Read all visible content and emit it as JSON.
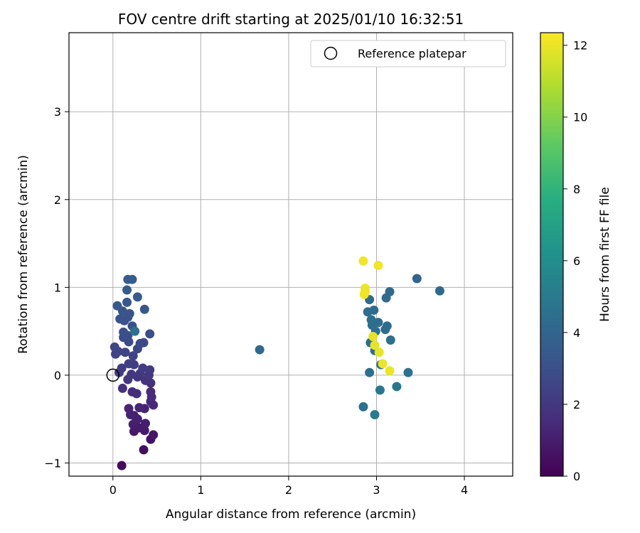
{
  "chart_data": {
    "type": "scatter",
    "title": "FOV centre drift starting at 2025/01/10 16:32:51",
    "xlabel": "Angular distance from reference (arcmin)",
    "ylabel": "Rotation from reference (arcmin)",
    "xlim": [
      -0.5,
      4.55
    ],
    "ylim": [
      -1.15,
      3.9
    ],
    "xticks": [
      0,
      1,
      2,
      3,
      4
    ],
    "yticks": [
      -1,
      0,
      1,
      2,
      3
    ],
    "grid": true,
    "legend": {
      "position": "top-right",
      "entries": [
        "Reference platepar"
      ]
    },
    "reference_point": {
      "x": 0,
      "y": 0
    },
    "colorbar": {
      "label": "Hours from first FF file",
      "range": [
        0,
        12.35
      ],
      "ticks": [
        0,
        2,
        4,
        6,
        8,
        10,
        12
      ],
      "colormap": "viridis"
    },
    "points": [
      {
        "x": 0.1,
        "y": -1.03,
        "h": 0.3
      },
      {
        "x": 0.35,
        "y": -0.85,
        "h": 0.5
      },
      {
        "x": 0.43,
        "y": -0.73,
        "h": 0.6
      },
      {
        "x": 0.46,
        "y": -0.68,
        "h": 0.7
      },
      {
        "x": 0.24,
        "y": -0.64,
        "h": 0.8
      },
      {
        "x": 0.36,
        "y": -0.63,
        "h": 0.9
      },
      {
        "x": 0.3,
        "y": -0.6,
        "h": 0.9
      },
      {
        "x": 0.23,
        "y": -0.56,
        "h": 1.0
      },
      {
        "x": 0.37,
        "y": -0.55,
        "h": 1.0
      },
      {
        "x": 0.28,
        "y": -0.5,
        "h": 1.1
      },
      {
        "x": 0.24,
        "y": -0.46,
        "h": 1.1
      },
      {
        "x": 0.2,
        "y": -0.45,
        "h": 1.2
      },
      {
        "x": 0.36,
        "y": -0.38,
        "h": 1.2
      },
      {
        "x": 0.3,
        "y": -0.37,
        "h": 1.3
      },
      {
        "x": 0.18,
        "y": -0.38,
        "h": 1.3
      },
      {
        "x": 0.46,
        "y": -0.34,
        "h": 1.4
      },
      {
        "x": 0.43,
        "y": -0.3,
        "h": 1.4
      },
      {
        "x": 0.44,
        "y": -0.25,
        "h": 1.5
      },
      {
        "x": 0.43,
        "y": -0.19,
        "h": 1.5
      },
      {
        "x": 0.27,
        "y": -0.21,
        "h": 1.6
      },
      {
        "x": 0.22,
        "y": -0.19,
        "h": 1.6
      },
      {
        "x": 0.11,
        "y": -0.15,
        "h": 1.7
      },
      {
        "x": 0.43,
        "y": -0.09,
        "h": 1.7
      },
      {
        "x": 0.37,
        "y": -0.06,
        "h": 1.8
      },
      {
        "x": 0.28,
        "y": -0.02,
        "h": 1.8
      },
      {
        "x": 0.17,
        "y": -0.05,
        "h": 1.9
      },
      {
        "x": 0.41,
        "y": 0.0,
        "h": 1.9
      },
      {
        "x": 0.31,
        "y": 0.02,
        "h": 2.0
      },
      {
        "x": 0.21,
        "y": 0.01,
        "h": 2.0
      },
      {
        "x": 0.07,
        "y": 0.03,
        "h": 2.1
      },
      {
        "x": 0.42,
        "y": 0.06,
        "h": 2.1
      },
      {
        "x": 0.34,
        "y": 0.08,
        "h": 2.2
      },
      {
        "x": 0.1,
        "y": 0.08,
        "h": 2.2
      },
      {
        "x": 0.24,
        "y": 0.12,
        "h": 2.3
      },
      {
        "x": 0.18,
        "y": 0.13,
        "h": 2.3
      },
      {
        "x": 0.23,
        "y": 0.22,
        "h": 2.4
      },
      {
        "x": 0.03,
        "y": 0.24,
        "h": 2.4
      },
      {
        "x": 0.06,
        "y": 0.27,
        "h": 2.5
      },
      {
        "x": 0.14,
        "y": 0.26,
        "h": 2.5
      },
      {
        "x": 0.28,
        "y": 0.3,
        "h": 2.6
      },
      {
        "x": 0.02,
        "y": 0.32,
        "h": 2.6
      },
      {
        "x": 0.35,
        "y": 0.37,
        "h": 2.7
      },
      {
        "x": 0.31,
        "y": 0.36,
        "h": 2.7
      },
      {
        "x": 0.18,
        "y": 0.38,
        "h": 2.8
      },
      {
        "x": 0.12,
        "y": 0.43,
        "h": 2.8
      },
      {
        "x": 0.42,
        "y": 0.47,
        "h": 2.9
      },
      {
        "x": 0.17,
        "y": 0.45,
        "h": 2.9
      },
      {
        "x": 0.12,
        "y": 0.49,
        "h": 3.0
      },
      {
        "x": 0.22,
        "y": 0.56,
        "h": 3.0
      },
      {
        "x": 0.13,
        "y": 0.62,
        "h": 3.1
      },
      {
        "x": 0.08,
        "y": 0.64,
        "h": 3.1
      },
      {
        "x": 0.17,
        "y": 0.66,
        "h": 3.2
      },
      {
        "x": 0.19,
        "y": 0.7,
        "h": 3.2
      },
      {
        "x": 0.11,
        "y": 0.73,
        "h": 3.3
      },
      {
        "x": 0.36,
        "y": 0.75,
        "h": 3.3
      },
      {
        "x": 0.05,
        "y": 0.79,
        "h": 3.4
      },
      {
        "x": 0.16,
        "y": 0.83,
        "h": 3.4
      },
      {
        "x": 0.28,
        "y": 0.89,
        "h": 3.5
      },
      {
        "x": 0.16,
        "y": 0.97,
        "h": 3.5
      },
      {
        "x": 0.17,
        "y": 1.09,
        "h": 3.6
      },
      {
        "x": 0.22,
        "y": 1.09,
        "h": 3.6
      },
      {
        "x": 0.25,
        "y": 0.5,
        "h": 4.6
      },
      {
        "x": 1.67,
        "y": 0.29,
        "h": 4.2
      },
      {
        "x": 2.85,
        "y": -0.36,
        "h": 4.6
      },
      {
        "x": 2.98,
        "y": -0.45,
        "h": 5.1
      },
      {
        "x": 3.04,
        "y": -0.17,
        "h": 4.9
      },
      {
        "x": 3.23,
        "y": -0.13,
        "h": 4.8
      },
      {
        "x": 2.92,
        "y": 0.03,
        "h": 4.5
      },
      {
        "x": 3.36,
        "y": 0.03,
        "h": 4.6
      },
      {
        "x": 3.05,
        "y": 0.12,
        "h": 4.4
      },
      {
        "x": 2.98,
        "y": 0.28,
        "h": 4.5
      },
      {
        "x": 2.93,
        "y": 0.37,
        "h": 4.3
      },
      {
        "x": 3.16,
        "y": 0.4,
        "h": 4.5
      },
      {
        "x": 3.1,
        "y": 0.52,
        "h": 4.4
      },
      {
        "x": 3.12,
        "y": 0.56,
        "h": 4.3
      },
      {
        "x": 2.99,
        "y": 0.5,
        "h": 4.5
      },
      {
        "x": 2.95,
        "y": 0.57,
        "h": 4.4
      },
      {
        "x": 3.02,
        "y": 0.6,
        "h": 4.4
      },
      {
        "x": 2.94,
        "y": 0.63,
        "h": 4.5
      },
      {
        "x": 2.9,
        "y": 0.72,
        "h": 4.4
      },
      {
        "x": 2.97,
        "y": 0.74,
        "h": 4.3
      },
      {
        "x": 2.92,
        "y": 0.86,
        "h": 4.3
      },
      {
        "x": 3.11,
        "y": 0.88,
        "h": 4.3
      },
      {
        "x": 3.15,
        "y": 0.95,
        "h": 4.2
      },
      {
        "x": 3.46,
        "y": 1.1,
        "h": 4.0
      },
      {
        "x": 3.72,
        "y": 0.96,
        "h": 4.2
      },
      {
        "x": 2.85,
        "y": 1.3,
        "h": 12.1
      },
      {
        "x": 3.02,
        "y": 1.25,
        "h": 12.1
      },
      {
        "x": 2.87,
        "y": 0.99,
        "h": 12.0
      },
      {
        "x": 2.87,
        "y": 0.95,
        "h": 12.0
      },
      {
        "x": 2.86,
        "y": 0.92,
        "h": 12.1
      },
      {
        "x": 2.96,
        "y": 0.44,
        "h": 11.9
      },
      {
        "x": 2.98,
        "y": 0.34,
        "h": 11.9
      },
      {
        "x": 3.03,
        "y": 0.26,
        "h": 11.9
      },
      {
        "x": 3.07,
        "y": 0.13,
        "h": 12.0
      },
      {
        "x": 3.15,
        "y": 0.05,
        "h": 12.0
      }
    ]
  }
}
